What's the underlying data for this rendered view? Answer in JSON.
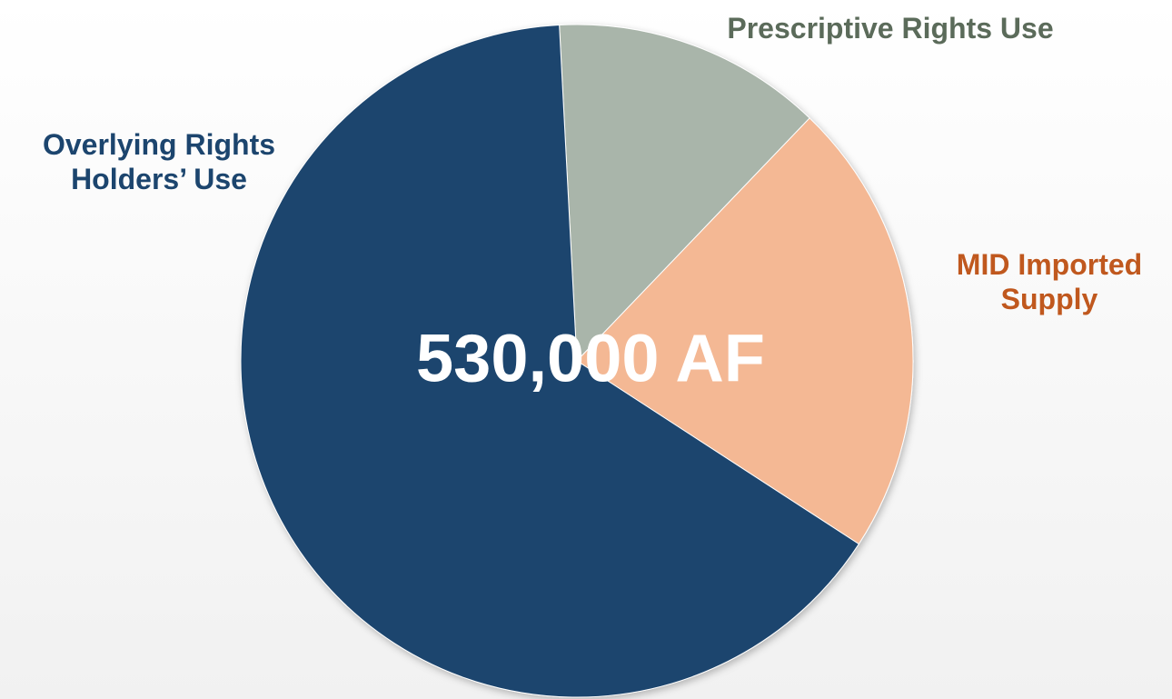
{
  "chart_data": {
    "type": "pie",
    "categories": [
      "Prescriptive Rights Use",
      "MID Imported Supply",
      "Overlying Rights Holders’ Use"
    ],
    "values": [
      13,
      22,
      65
    ],
    "colors": [
      "#a9b5aa",
      "#f4b894",
      "#1c456e"
    ],
    "annotation": "530,000 AF"
  }
}
